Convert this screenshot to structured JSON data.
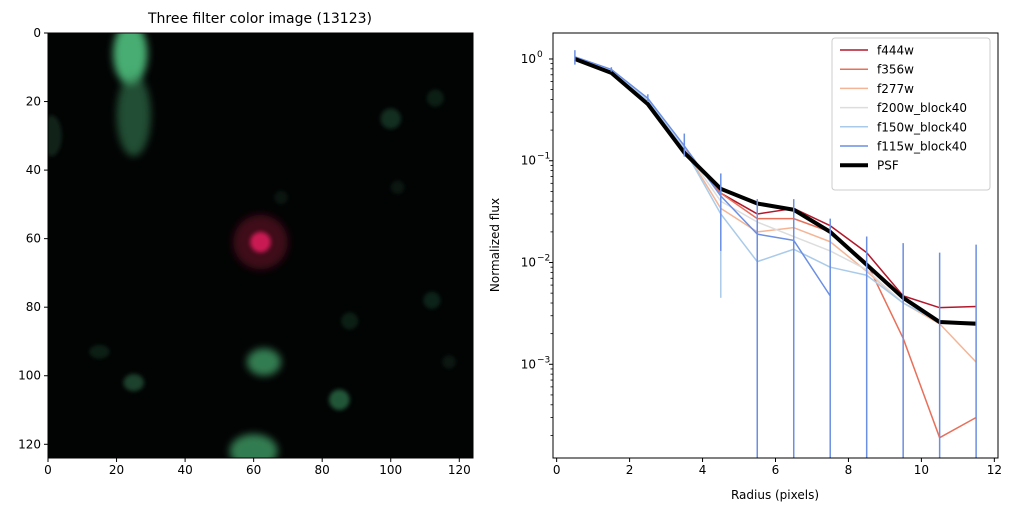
{
  "chart_data": [
    {
      "type": "image",
      "title": "Three filter color image (13123)",
      "xlabel": "",
      "ylabel": "",
      "xlim": [
        0,
        124
      ],
      "ylim": [
        124,
        0
      ],
      "xticks": [
        0,
        20,
        40,
        60,
        80,
        100,
        120
      ],
      "yticks": [
        0,
        20,
        40,
        60,
        80,
        100,
        120
      ],
      "background_color": "#020303",
      "sources": [
        {
          "x": 24,
          "y": 6,
          "rx": 5,
          "ry": 9,
          "color": "#4fc07e",
          "opacity": 0.9
        },
        {
          "x": 25,
          "y": 24,
          "rx": 5,
          "ry": 12,
          "color": "#3a8a5c",
          "opacity": 0.55
        },
        {
          "x": 62,
          "y": 61,
          "rx": 3,
          "ry": 3,
          "color": "#ff1e6e",
          "opacity": 1.0
        },
        {
          "x": 62,
          "y": 61,
          "rx": 8,
          "ry": 8,
          "color": "#8a1038",
          "opacity": 0.45
        },
        {
          "x": 63,
          "y": 96,
          "rx": 5,
          "ry": 4,
          "color": "#3f9a64",
          "opacity": 0.8
        },
        {
          "x": 60,
          "y": 122,
          "rx": 7,
          "ry": 5,
          "color": "#3f9a64",
          "opacity": 0.8
        },
        {
          "x": 85,
          "y": 107,
          "rx": 3,
          "ry": 3,
          "color": "#2f7a50",
          "opacity": 0.7
        },
        {
          "x": 25,
          "y": 102,
          "rx": 3,
          "ry": 2.5,
          "color": "#2c6a48",
          "opacity": 0.6
        },
        {
          "x": 100,
          "y": 25,
          "rx": 3,
          "ry": 3,
          "color": "#1f5a3c",
          "opacity": 0.5
        },
        {
          "x": 113,
          "y": 19,
          "rx": 2.5,
          "ry": 2.5,
          "color": "#1a4a32",
          "opacity": 0.4
        },
        {
          "x": 112,
          "y": 78,
          "rx": 2.5,
          "ry": 2.5,
          "color": "#1a4a32",
          "opacity": 0.45
        },
        {
          "x": 88,
          "y": 84,
          "rx": 2.5,
          "ry": 2.5,
          "color": "#1a4a32",
          "opacity": 0.4
        },
        {
          "x": 15,
          "y": 93,
          "rx": 3,
          "ry": 2,
          "color": "#1a4a32",
          "opacity": 0.4
        },
        {
          "x": 102,
          "y": 45,
          "rx": 2,
          "ry": 2,
          "color": "#173f2b",
          "opacity": 0.35
        },
        {
          "x": 117,
          "y": 96,
          "rx": 2,
          "ry": 2,
          "color": "#173f2b",
          "opacity": 0.35
        },
        {
          "x": 1,
          "y": 30,
          "rx": 3,
          "ry": 6,
          "color": "#1f4a34",
          "opacity": 0.45
        },
        {
          "x": 68,
          "y": 48,
          "rx": 2,
          "ry": 2,
          "color": "#173f2b",
          "opacity": 0.3
        }
      ]
    },
    {
      "type": "line",
      "title": "",
      "xlabel": "Radius (pixels)",
      "ylabel": "Normalized flux",
      "xlim": [
        -0.1,
        12.1
      ],
      "ylim": [
        0.00012,
        1.8
      ],
      "yscale": "log",
      "xticks": [
        0,
        2,
        4,
        6,
        8,
        10,
        12
      ],
      "yticks": [
        {
          "value": 1,
          "label": "10",
          "exp": "0"
        },
        {
          "value": 0.1,
          "label": "10",
          "exp": "−1"
        },
        {
          "value": 0.01,
          "label": "10",
          "exp": "−2"
        },
        {
          "value": 0.001,
          "label": "10",
          "exp": "−3"
        }
      ],
      "legend_position": "top-right",
      "x": [
        0.5,
        1.5,
        2.5,
        3.5,
        4.5,
        5.5,
        6.5,
        7.5,
        8.5,
        9.5,
        10.5,
        11.5
      ],
      "series": [
        {
          "name": "f444w",
          "color": "#b2182b",
          "width": 1.5,
          "values": [
            1.0,
            0.75,
            0.38,
            0.13,
            0.048,
            0.03,
            0.034,
            0.023,
            0.0125,
            0.0047,
            0.0036,
            0.0037
          ]
        },
        {
          "name": "f356w",
          "color": "#e8705a",
          "width": 1.5,
          "values": [
            1.0,
            0.75,
            0.38,
            0.13,
            0.048,
            0.027,
            0.027,
            0.02,
            0.01,
            0.0018,
            0.00019,
            0.0003
          ]
        },
        {
          "name": "f277w",
          "color": "#f4b597",
          "width": 1.5,
          "values": [
            1.0,
            0.75,
            0.38,
            0.13,
            0.034,
            0.02,
            0.022,
            0.016,
            0.0082,
            0.004,
            0.0025,
            0.00105
          ]
        },
        {
          "name": "f200w_block40",
          "color": "#dddddd",
          "width": 1.5,
          "values": [
            1.0,
            0.75,
            0.38,
            0.13,
            0.04,
            0.025,
            0.018,
            0.013,
            0.0085,
            0.004,
            0.0026,
            0.0026
          ]
        },
        {
          "name": "f150w_block40",
          "color": "#a9cbe9",
          "width": 1.5,
          "values": [
            1.0,
            0.76,
            0.39,
            0.13,
            0.03,
            0.0102,
            0.0135,
            0.009,
            0.0075,
            0.004,
            0.0026,
            0.0026
          ]
        },
        {
          "name": "f115w_block40",
          "color": "#6b8fe3",
          "width": 1.5,
          "values": [
            1.05,
            0.79,
            0.41,
            0.14,
            0.045,
            0.019,
            0.0165,
            0.0047,
            null,
            null,
            null,
            null
          ]
        },
        {
          "name": "PSF",
          "color": "#000000",
          "width": 4,
          "values": [
            1.0,
            0.73,
            0.36,
            0.12,
            0.053,
            0.038,
            0.033,
            0.02,
            0.0095,
            0.0045,
            0.0026,
            0.0025
          ]
        }
      ],
      "error_bars": {
        "series": "f115w_block40",
        "color": "#6b8fe3",
        "ranges": [
          [
            0.5,
            0.88,
            1.22
          ],
          [
            1.5,
            0.75,
            0.83
          ],
          [
            2.5,
            0.38,
            0.45
          ],
          [
            3.5,
            0.11,
            0.185
          ],
          [
            4.5,
            0.013,
            0.075
          ],
          [
            5.5,
            0.00012,
            0.042
          ],
          [
            6.5,
            0.00012,
            0.042
          ],
          [
            7.5,
            0.00012,
            0.027
          ],
          [
            8.5,
            0.00012,
            0.018
          ],
          [
            9.5,
            0.00012,
            0.0155
          ],
          [
            10.5,
            0.00012,
            0.0125
          ],
          [
            11.5,
            0.00012,
            0.015
          ]
        ]
      },
      "error_bars_secondary": {
        "series": "f150w_block40",
        "color": "#a9cbe9",
        "ranges": [
          [
            4.5,
            0.0045,
            0.06
          ]
        ]
      }
    }
  ]
}
